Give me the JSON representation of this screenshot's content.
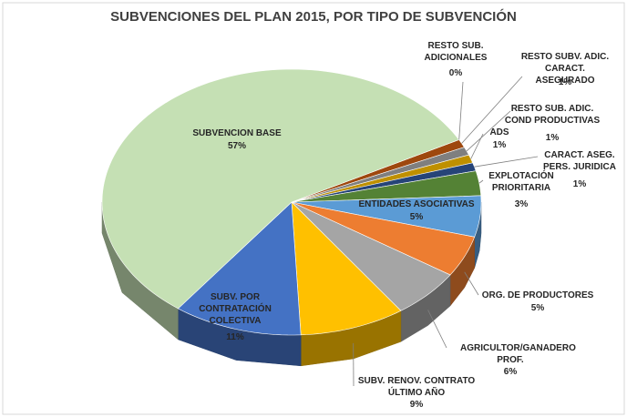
{
  "chart_data": {
    "type": "pie3d",
    "title": "SUBVENCIONES DEL PLAN 2015, POR TIPO DE SUBVENCIÓN",
    "categories": [
      "RESTO SUB. ADICIONALES",
      "RESTO SUBV. ADIC. CARACT. ASEGURADO",
      "RESTO SUB. ADIC. COND PRODUCTIVAS",
      "ADS",
      "CARACT. ASEG. PERS. JURIDICA",
      "EXPLOTACIÓN PRIORITARIA",
      "ENTIDADES ASOCIATIVAS",
      "ORG. DE PRODUCTORES",
      "AGRICULTOR/GANADERO PROF.",
      "SUBV. RENOV. CONTRATO ÚLTIMO AÑO",
      "SUBV. POR CONTRATACIÓN COLECTIVA",
      "SUBVENCION BASE"
    ],
    "values": [
      0,
      1,
      1,
      1,
      1,
      3,
      5,
      5,
      6,
      9,
      11,
      57
    ],
    "value_labels": [
      "0%",
      "1%",
      "1%",
      "1%",
      "1%",
      "3%",
      "5%",
      "5%",
      "6%",
      "9%",
      "11%",
      "57%"
    ],
    "colors": [
      "#7f6000",
      "#9e480e",
      "#7f7f7f",
      "#bf9000",
      "#264478",
      "#548235",
      "#5b9bd5",
      "#ed7d31",
      "#a5a5a5",
      "#ffc000",
      "#4472c4",
      "#c5e0b4"
    ]
  }
}
